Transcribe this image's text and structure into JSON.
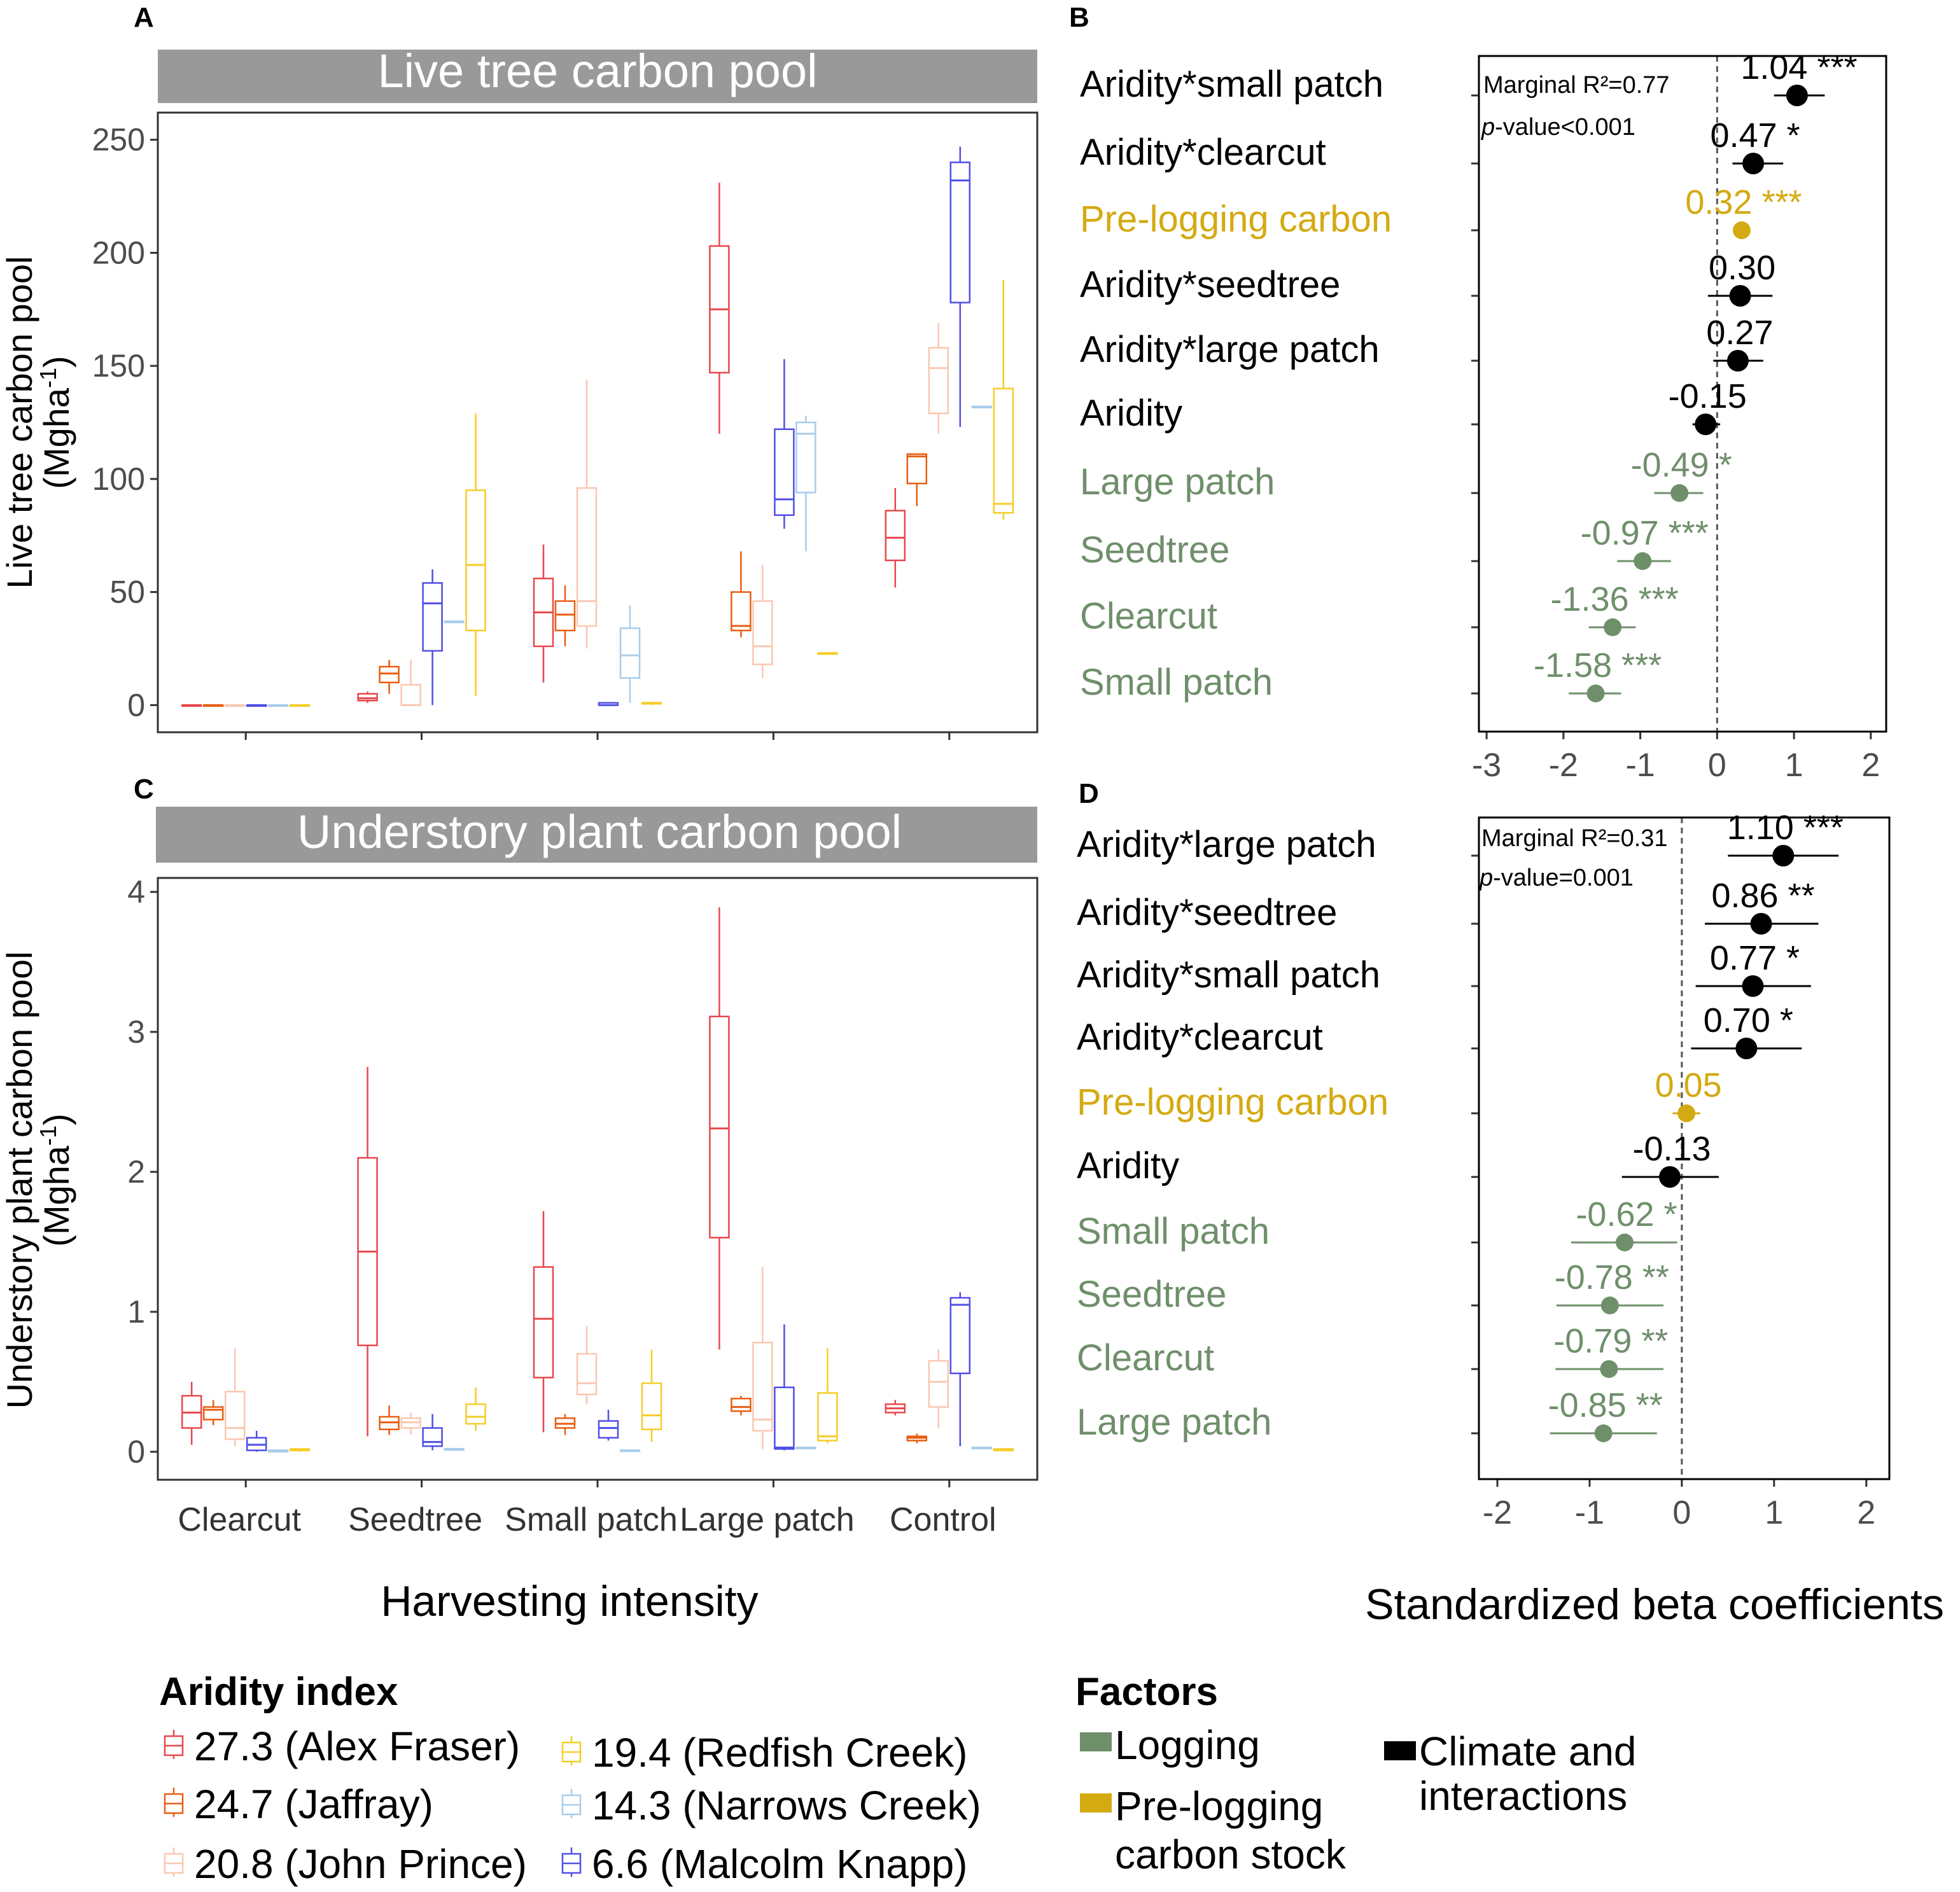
{
  "figure": {
    "colors": {
      "aridity_sites": [
        "#e8474c",
        "#e85e12",
        "#f9c8b0",
        "#f6cd2a",
        "#a9cdea",
        "#4f4fe8"
      ],
      "logging": "#6f8f6b",
      "prelogging": "#d4aa12",
      "climate": "#000000",
      "strip": "#999999"
    }
  },
  "chart_data": [
    {
      "panel": "A",
      "type": "boxplot",
      "title": "Live tree carbon pool",
      "ylabel": "Live tree carbon pool",
      "ylabel_unit": "(Mgha-1)",
      "ylim": [
        -12,
        262
      ],
      "yticks": [
        0,
        50,
        100,
        150,
        200,
        250
      ],
      "categories": [
        "Clearcut",
        "Seedtree",
        "Small patch",
        "Large patch",
        "Control"
      ],
      "series_order": [
        "Alex Fraser",
        "Jaffray",
        "John Prince",
        "Redfish Creek",
        "Narrows Creek",
        "Malcolm Knapp"
      ],
      "boxes": [
        [
          [
            0,
            0,
            0,
            0,
            0
          ],
          [
            0,
            0,
            0,
            0,
            0
          ],
          [
            0,
            0,
            0,
            0,
            0
          ],
          [
            0,
            0,
            0,
            0,
            0
          ],
          [
            0,
            0,
            0,
            0,
            0
          ],
          [
            0,
            0,
            0,
            0,
            0
          ]
        ],
        [
          [
            1,
            2,
            3,
            5,
            6
          ],
          [
            5,
            10,
            14,
            17,
            20
          ],
          [
            0,
            0,
            0,
            9,
            20
          ],
          [
            4,
            33,
            62,
            95,
            129
          ],
          [
            37,
            37,
            37,
            37,
            37
          ],
          [
            0,
            24,
            45,
            54,
            60
          ]
        ],
        [
          [
            10,
            26,
            41,
            56,
            71
          ],
          [
            26,
            33,
            40,
            46,
            53
          ],
          [
            25,
            35,
            46,
            96,
            144
          ],
          [
            0,
            1,
            1,
            1,
            1
          ],
          [
            1,
            12,
            22,
            34,
            44
          ],
          [
            0,
            0,
            0,
            1,
            1
          ]
        ],
        [
          [
            120,
            147,
            175,
            203,
            231
          ],
          [
            30,
            33,
            35,
            50,
            68
          ],
          [
            12,
            18,
            26,
            46,
            62
          ],
          [
            23,
            23,
            23,
            23,
            23
          ],
          [
            68,
            94,
            120,
            125,
            128
          ],
          [
            78,
            84,
            91,
            122,
            153
          ]
        ],
        [
          [
            52,
            64,
            74,
            86,
            96
          ],
          [
            88,
            98,
            110,
            111,
            111
          ],
          [
            120,
            129,
            149,
            158,
            169
          ],
          [
            82,
            85,
            89,
            140,
            188
          ],
          [
            132,
            132,
            132,
            132,
            132
          ],
          [
            123,
            178,
            232,
            240,
            247
          ]
        ]
      ]
    },
    {
      "panel": "C",
      "type": "boxplot",
      "title": "Understory plant carbon pool",
      "ylabel": "Understory plant carbon pool",
      "ylabel_unit": "(Mgha-1)",
      "xlabel": "Harvesting intensity",
      "ylim": [
        -0.2,
        4.1
      ],
      "yticks": [
        0,
        1,
        2,
        3,
        4
      ],
      "categories": [
        "Clearcut",
        "Seedtree",
        "Small patch",
        "Large patch",
        "Control"
      ],
      "series_order": [
        "Alex Fraser",
        "Jaffray",
        "John Prince",
        "Redfish Creek",
        "Narrows Creek",
        "Malcolm Knapp"
      ],
      "boxes": [
        [
          [
            0.05,
            0.17,
            0.28,
            0.4,
            0.5
          ],
          [
            0.19,
            0.23,
            0.3,
            0.32,
            0.37
          ],
          [
            0.04,
            0.09,
            0.17,
            0.43,
            0.74
          ],
          [
            0,
            0.01,
            0.01,
            0.02,
            0.02
          ],
          [
            0,
            0,
            0.01,
            0.01,
            0.01
          ],
          [
            0,
            0.01,
            0.05,
            0.1,
            0.15
          ]
        ],
        [
          [
            0.11,
            0.76,
            1.43,
            2.1,
            2.75
          ],
          [
            0.12,
            0.16,
            0.21,
            0.25,
            0.33
          ],
          [
            0.12,
            0.17,
            0.21,
            0.24,
            0.28
          ],
          [
            0.15,
            0.2,
            0.25,
            0.34,
            0.46
          ],
          [
            0.02,
            0.02,
            0.02,
            0.02,
            0.02
          ],
          [
            0.01,
            0.04,
            0.07,
            0.17,
            0.27
          ]
        ],
        [
          [
            0.14,
            0.53,
            0.95,
            1.32,
            1.72
          ],
          [
            0.12,
            0.17,
            0.2,
            0.24,
            0.27
          ],
          [
            0.34,
            0.41,
            0.49,
            0.7,
            0.9
          ],
          [
            0.07,
            0.16,
            0.26,
            0.49,
            0.73
          ],
          [
            0.01,
            0.01,
            0.01,
            0.01,
            0.01
          ],
          [
            0.08,
            0.1,
            0.17,
            0.22,
            0.3
          ]
        ],
        [
          [
            0.73,
            1.53,
            2.31,
            3.11,
            3.89
          ],
          [
            0.26,
            0.29,
            0.32,
            0.38,
            0.4
          ],
          [
            0.02,
            0.15,
            0.23,
            0.78,
            1.32
          ],
          [
            0.06,
            0.08,
            0.11,
            0.42,
            0.74
          ],
          [
            0.03,
            0.03,
            0.03,
            0.03,
            0.03
          ],
          [
            0.01,
            0.02,
            0.03,
            0.46,
            0.91
          ]
        ],
        [
          [
            0.26,
            0.28,
            0.31,
            0.34,
            0.37
          ],
          [
            0.06,
            0.08,
            0.1,
            0.11,
            0.13
          ],
          [
            0.17,
            0.32,
            0.5,
            0.65,
            0.73
          ],
          [
            0.01,
            0.01,
            0.01,
            0.02,
            0.02
          ],
          [
            0.03,
            0.03,
            0.03,
            0.03,
            0.03
          ],
          [
            0.04,
            0.56,
            1.05,
            1.1,
            1.14
          ]
        ]
      ]
    },
    {
      "panel": "B",
      "type": "forest",
      "annotation_r2": "Marginal R²=0.77",
      "annotation_p_label": "p",
      "annotation_p": "-value<0.001",
      "xlim": [
        -3.1,
        2.2
      ],
      "xticks": [
        -3,
        -2,
        -1,
        0,
        1,
        2
      ],
      "terms": [
        {
          "label": "Aridity*small patch",
          "est": 1.04,
          "lo": 0.74,
          "hi": 1.4,
          "text": "1.04 ***",
          "group": "climate"
        },
        {
          "label": "Aridity*clearcut",
          "est": 0.47,
          "lo": 0.2,
          "hi": 0.86,
          "text": "0.47 *",
          "group": "climate"
        },
        {
          "label": "Pre-logging carbon",
          "est": 0.32,
          "lo": 0.24,
          "hi": 0.42,
          "text": "0.32 ***",
          "group": "prelogging"
        },
        {
          "label": "Aridity*seedtree",
          "est": 0.3,
          "lo": -0.12,
          "hi": 0.72,
          "text": "0.30",
          "group": "climate"
        },
        {
          "label": "Aridity*large patch",
          "est": 0.27,
          "lo": -0.05,
          "hi": 0.6,
          "text": "0.27",
          "group": "climate"
        },
        {
          "label": "Aridity",
          "est": -0.15,
          "lo": -0.32,
          "hi": 0.04,
          "text": "-0.15",
          "group": "climate"
        },
        {
          "label": "Large patch",
          "est": -0.49,
          "lo": -0.82,
          "hi": -0.18,
          "text": "-0.49 *",
          "group": "logging"
        },
        {
          "label": "Seedtree",
          "est": -0.97,
          "lo": -1.3,
          "hi": -0.6,
          "text": "-0.97 ***",
          "group": "logging"
        },
        {
          "label": "Clearcut",
          "est": -1.36,
          "lo": -1.67,
          "hi": -1.06,
          "text": "-1.36 ***",
          "group": "logging"
        },
        {
          "label": "Small patch",
          "est": -1.58,
          "lo": -1.93,
          "hi": -1.25,
          "text": "-1.58 ***",
          "group": "logging"
        }
      ]
    },
    {
      "panel": "D",
      "type": "forest",
      "annotation_r2": "Marginal R²=0.31",
      "annotation_p_label": "p",
      "annotation_p": "-value=0.001",
      "xlabel": "Standardized beta coefficients",
      "xlim": [
        -2.2,
        2.25
      ],
      "xticks": [
        -2,
        -1,
        0,
        1,
        2
      ],
      "terms": [
        {
          "label": "Aridity*large patch",
          "est": 1.1,
          "lo": 0.5,
          "hi": 1.7,
          "text": "1.10 ***",
          "group": "climate"
        },
        {
          "label": "Aridity*seedtree",
          "est": 0.86,
          "lo": 0.25,
          "hi": 1.48,
          "text": "0.86 **",
          "group": "climate"
        },
        {
          "label": "Aridity*small patch",
          "est": 0.77,
          "lo": 0.15,
          "hi": 1.4,
          "text": "0.77 *",
          "group": "climate"
        },
        {
          "label": "Aridity*clearcut",
          "est": 0.7,
          "lo": 0.1,
          "hi": 1.3,
          "text": "0.70 *",
          "group": "climate"
        },
        {
          "label": "Pre-logging carbon",
          "est": 0.05,
          "lo": -0.1,
          "hi": 0.2,
          "text": "0.05",
          "group": "prelogging"
        },
        {
          "label": "Aridity",
          "est": -0.13,
          "lo": -0.65,
          "hi": 0.4,
          "text": "-0.13",
          "group": "climate"
        },
        {
          "label": "Small patch",
          "est": -0.62,
          "lo": -1.2,
          "hi": -0.05,
          "text": "-0.62 *",
          "group": "logging"
        },
        {
          "label": "Seedtree",
          "est": -0.78,
          "lo": -1.36,
          "hi": -0.2,
          "text": "-0.78 **",
          "group": "logging"
        },
        {
          "label": "Clearcut",
          "est": -0.79,
          "lo": -1.37,
          "hi": -0.2,
          "text": "-0.79 **",
          "group": "logging"
        },
        {
          "label": "Large patch",
          "est": -0.85,
          "lo": -1.43,
          "hi": -0.27,
          "text": "-0.85 **",
          "group": "logging"
        }
      ]
    }
  ],
  "legend_aridity": {
    "title": "Aridity index",
    "items": [
      {
        "label": "27.3 (Alex Fraser)"
      },
      {
        "label": "24.7 (Jaffray)"
      },
      {
        "label": "20.8 (John Prince)"
      },
      {
        "label": "19.4 (Redfish Creek)"
      },
      {
        "label": "14.3 (Narrows Creek)"
      },
      {
        "label": "6.6 (Malcolm Knapp)"
      }
    ]
  },
  "legend_factors": {
    "title": "Factors",
    "logging": "Logging",
    "prelogging_1": "Pre-logging",
    "prelogging_2": "carbon stock",
    "climate_1": "Climate and",
    "climate_2": "interactions"
  }
}
